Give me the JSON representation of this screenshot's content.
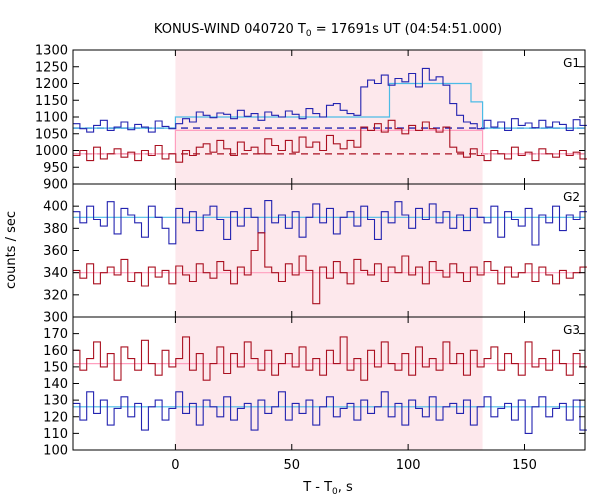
{
  "chart_data": {
    "type": "line",
    "title_main": "KONUS-WIND 040720 T",
    "title_sub": "0",
    "title_rest": " = 17691s UT (04:54:51.000)",
    "xlabel_main": "T - T",
    "xlabel_sub": "0",
    "xlabel_rest": ", s",
    "ylabel": "counts / sec",
    "xlim": [
      -44,
      176
    ],
    "xticks": [
      0,
      50,
      100,
      150
    ],
    "shaded_interval": [
      0,
      132
    ],
    "colors": {
      "blue": "#2323b0",
      "red": "#aa1020",
      "light_blue": "#4bbbe6",
      "pink": "#ff9fbf",
      "shade": "#fde8ec"
    },
    "bin_width": 2.944,
    "panels": [
      {
        "name": "G1",
        "ylim": [
          900,
          1300
        ],
        "yticks": [
          900,
          950,
          1000,
          1050,
          1100,
          1150,
          1200,
          1250,
          1300
        ],
        "background_levels": [
          {
            "color": "blue",
            "value": 1067,
            "dashed": true
          },
          {
            "color": "red",
            "value": 990,
            "dashed": true
          }
        ],
        "fit_steps": [
          {
            "color": "light_blue",
            "points": [
              [
                -44,
                1067
              ],
              [
                0,
                1067
              ],
              [
                0,
                1100
              ],
              [
                92,
                1100
              ],
              [
                92,
                1200
              ],
              [
                127,
                1200
              ],
              [
                127,
                1145
              ],
              [
                132,
                1145
              ],
              [
                132,
                1067
              ],
              [
                176,
                1067
              ]
            ]
          },
          {
            "color": "pink",
            "points": [
              [
                -44,
                990
              ],
              [
                0,
                990
              ],
              [
                0,
                1060
              ],
              [
                132,
                1060
              ],
              [
                132,
                990
              ],
              [
                176,
                990
              ]
            ]
          }
        ],
        "series": [
          {
            "color": "blue",
            "values": [
              1080,
              1065,
              1055,
              1075,
              1090,
              1060,
              1070,
              1085,
              1062,
              1078,
              1070,
              1055,
              1088,
              1072,
              1065,
              1080,
              1095,
              1085,
              1115,
              1105,
              1098,
              1112,
              1108,
              1095,
              1120,
              1102,
              1110,
              1090,
              1115,
              1105,
              1100,
              1118,
              1108,
              1095,
              1125,
              1110,
              1100,
              1135,
              1140,
              1120,
              1110,
              1105,
              1190,
              1210,
              1200,
              1225,
              1195,
              1215,
              1205,
              1230,
              1190,
              1245,
              1210,
              1220,
              1195,
              1140,
              1105,
              1085,
              1080,
              1065,
              1090,
              1070,
              1085,
              1060,
              1095,
              1075,
              1082,
              1068,
              1090,
              1070,
              1085,
              1078,
              1060,
              1092,
              1075
            ]
          },
          {
            "color": "red",
            "values": [
              985,
              1000,
              970,
              1010,
              975,
              990,
              1005,
              980,
              995,
              970,
              1000,
              985,
              1015,
              975,
              990,
              965,
              1000,
              985,
              1010,
              1020,
              995,
              1030,
              1005,
              985,
              1025,
              1000,
              1010,
              990,
              1035,
              1015,
              1000,
              1030,
              995,
              1040,
              1010,
              1025,
              1000,
              1045,
              1020,
              1005,
              1030,
              1010,
              1070,
              1060,
              1080,
              1055,
              1090,
              1065,
              1050,
              1075,
              1060,
              1085,
              1065,
              1055,
              1070,
              1010,
              995,
              980,
              1005,
              985,
              970,
              1000,
              990,
              975,
              1010,
              985,
              995,
              970,
              1005,
              990,
              980,
              1000,
              985,
              995,
              975
            ]
          }
        ]
      },
      {
        "name": "G2",
        "ylim": [
          300,
          420
        ],
        "yticks": [
          300,
          320,
          340,
          360,
          380,
          400
        ],
        "background_levels": [],
        "fit_steps": [
          {
            "color": "light_blue",
            "points": [
              [
                -44,
                390
              ],
              [
                176,
                390
              ]
            ]
          },
          {
            "color": "pink",
            "points": [
              [
                -44,
                340
              ],
              [
                176,
                340
              ]
            ]
          }
        ],
        "series": [
          {
            "color": "blue",
            "values": [
              395,
              385,
              400,
              388,
              382,
              404,
              375,
              398,
              392,
              385,
              372,
              400,
              390,
              380,
              366,
              398,
              385,
              395,
              378,
              392,
              400,
              388,
              370,
              395,
              382,
              398,
              390,
              376,
              405,
              385,
              392,
              380,
              395,
              372,
              390,
              402,
              385,
              398,
              375,
              390,
              395,
              382,
              400,
              388,
              370,
              395,
              385,
              404,
              392,
              380,
              398,
              388,
              402,
              385,
              395,
              380,
              392,
              378,
              398,
              390,
              385,
              400,
              372,
              395,
              388,
              382,
              398,
              365,
              392,
              385,
              400,
              378,
              392,
              388,
              395
            ]
          },
          {
            "color": "red",
            "values": [
              342,
              335,
              348,
              330,
              340,
              345,
              338,
              352,
              332,
              340,
              328,
              345,
              336,
              342,
              330,
              346,
              338,
              332,
              348,
              340,
              335,
              350,
              342,
              330,
              345,
              338,
              360,
              376,
              345,
              340,
              332,
              348,
              338,
              355,
              342,
              312,
              345,
              335,
              350,
              340,
              330,
              352,
              342,
              338,
              348,
              332,
              345,
              340,
              355,
              338,
              345,
              330,
              350,
              342,
              336,
              348,
              340,
              332,
              345,
              338,
              350,
              342,
              330,
              345,
              336,
              340,
              348,
              332,
              345,
              338,
              330,
              342,
              335,
              340,
              345
            ]
          }
        ]
      },
      {
        "name": "G3",
        "ylim": [
          100,
          180
        ],
        "yticks": [
          100,
          110,
          120,
          130,
          140,
          150,
          160,
          170
        ],
        "background_levels": [],
        "fit_steps": [
          {
            "color": "light_blue",
            "points": [
              [
                -44,
                126
              ],
              [
                176,
                126
              ]
            ]
          },
          {
            "color": "pink",
            "points": [
              [
                -44,
                152
              ],
              [
                176,
                152
              ]
            ]
          }
        ],
        "series": [
          {
            "color": "blue",
            "values": [
              128,
              118,
              135,
              122,
              130,
              115,
              125,
              132,
              120,
              128,
              112,
              126,
              130,
              118,
              125,
              135,
              122,
              128,
              115,
              130,
              126,
              120,
              132,
              118,
              125,
              128,
              112,
              130,
              122,
              126,
              135,
              118,
              128,
              122,
              130,
              115,
              126,
              132,
              120,
              125,
              128,
              118,
              130,
              122,
              126,
              135,
              120,
              128,
              115,
              130,
              125,
              120,
              132,
              118,
              126,
              128,
              122,
              130,
              115,
              126,
              132,
              120,
              125,
              128,
              118,
              130,
              110,
              126,
              132,
              120,
              125,
              128,
              118,
              130,
              112
            ]
          },
          {
            "color": "red",
            "values": [
              160,
              148,
              155,
              165,
              150,
              158,
              142,
              162,
              155,
              148,
              166,
              152,
              145,
              160,
              150,
              155,
              168,
              148,
              158,
              142,
              152,
              162,
              146,
              158,
              150,
              165,
              155,
              148,
              160,
              145,
              152,
              158,
              150,
              162,
              148,
              155,
              145,
              160,
              152,
              168,
              148,
              155,
              142,
              160,
              150,
              165,
              152,
              148,
              158,
              145,
              162,
              150,
              155,
              148,
              165,
              152,
              158,
              145,
              160,
              150,
              155,
              162,
              148,
              158,
              152,
              145,
              165,
              150,
              155,
              148,
              160,
              152,
              145,
              158,
              150
            ]
          }
        ]
      }
    ]
  }
}
